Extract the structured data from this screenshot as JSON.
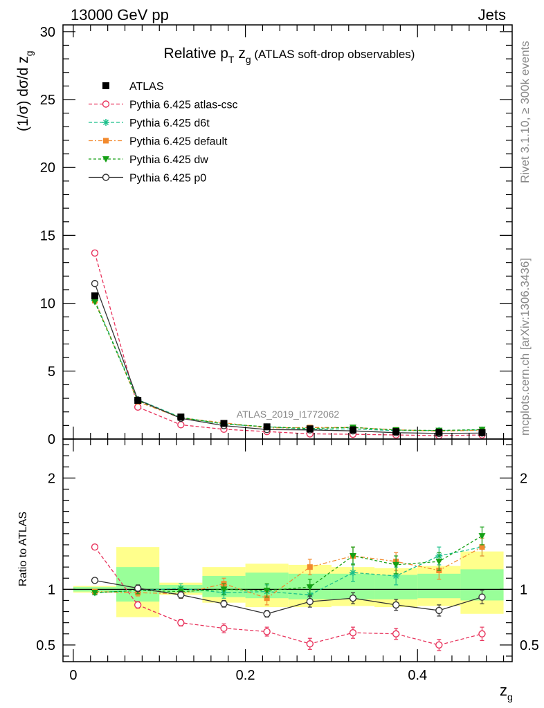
{
  "header": {
    "left": "13000 GeV pp",
    "right": "Jets"
  },
  "side_labels": {
    "rivet": "Rivet 3.1.10, ≥ 300k events",
    "mcplots": "mcplots.cern.ch [arXiv:1306.3436]"
  },
  "colors": {
    "data": "#000000",
    "atlas_csc": "#e8335c",
    "d6t": "#1bbf8a",
    "default": "#f28a2e",
    "dw": "#15a015",
    "p0": "#333333",
    "band_outer": "#ffff8c",
    "band_inner": "#99ff99"
  },
  "chart_data": [
    {
      "type": "line",
      "title": "Relative p_T z_g (ATLAS soft-drop observables)",
      "title_parts": {
        "main": "Relative p",
        "sub1": "T",
        "mid": " z",
        "sub2": "g",
        "rest": " (ATLAS soft-drop observables)"
      },
      "ylabel": "(1/σ) dσ/d z_g",
      "ylabel_parts": {
        "main": "(1/σ) dσ/d z",
        "sub": "g"
      },
      "watermark": "ATLAS_2019_I1772062",
      "xlim": [
        -0.012,
        0.51
      ],
      "ylim": [
        0,
        30.5
      ],
      "yticks": [
        0,
        5,
        10,
        15,
        20,
        25,
        30
      ],
      "ytick_labels": [
        "0",
        "5",
        "10",
        "15",
        "20",
        "25",
        "30"
      ],
      "legend_position": "top-left",
      "x": [
        0.025,
        0.075,
        0.125,
        0.175,
        0.225,
        0.275,
        0.325,
        0.375,
        0.425,
        0.475
      ],
      "bin_edges": [
        0.0,
        0.05,
        0.1,
        0.15,
        0.2,
        0.25,
        0.3,
        0.35,
        0.4,
        0.45,
        0.5
      ],
      "series": [
        {
          "name": "ATLAS",
          "key": "data",
          "values": [
            10.55,
            2.85,
            1.62,
            1.15,
            0.9,
            0.75,
            0.68,
            0.55,
            0.5,
            0.48
          ]
        },
        {
          "name": "Pythia 6.425 atlas-csc",
          "key": "atlas_csc",
          "values": [
            13.7,
            2.35,
            1.05,
            0.72,
            0.55,
            0.38,
            0.35,
            0.3,
            0.25,
            0.3
          ]
        },
        {
          "name": "Pythia 6.425 d6t",
          "key": "d6t",
          "values": [
            10.2,
            2.9,
            1.6,
            1.1,
            0.9,
            0.72,
            0.75,
            0.62,
            0.63,
            0.66
          ]
        },
        {
          "name": "Pythia 6.425 default",
          "key": "default",
          "values": [
            10.2,
            2.75,
            1.55,
            1.2,
            0.82,
            0.85,
            0.85,
            0.68,
            0.58,
            0.65
          ]
        },
        {
          "name": "Pythia 6.425 dw",
          "key": "dw",
          "values": [
            10.1,
            2.82,
            1.58,
            1.12,
            0.9,
            0.78,
            0.86,
            0.66,
            0.63,
            0.7
          ]
        },
        {
          "name": "Pythia 6.425 p0",
          "key": "p0",
          "values": [
            11.45,
            2.88,
            1.53,
            0.99,
            0.7,
            0.67,
            0.6,
            0.47,
            0.41,
            0.44
          ]
        }
      ]
    },
    {
      "type": "line",
      "ylabel": "Ratio to ATLAS",
      "xlabel": "z_g",
      "xlabel_parts": {
        "main": "z",
        "sub": "g"
      },
      "xlim": [
        -0.012,
        0.51
      ],
      "ylim": [
        0.35,
        2.35
      ],
      "xticks": [
        0,
        0.2,
        0.4
      ],
      "xtick_labels": [
        "0",
        "0.2",
        "0.4"
      ],
      "yticks": [
        0.5,
        1,
        2
      ],
      "ytick_labels": [
        "0.5",
        "1",
        "2"
      ],
      "x": [
        0.025,
        0.075,
        0.125,
        0.175,
        0.225,
        0.275,
        0.325,
        0.375,
        0.425,
        0.475
      ],
      "bin_edges": [
        0.0,
        0.05,
        0.1,
        0.15,
        0.2,
        0.25,
        0.3,
        0.35,
        0.4,
        0.45,
        0.5
      ],
      "band_outer": [
        [
          0.97,
          1.03
        ],
        [
          0.75,
          1.38
        ],
        [
          0.95,
          1.06
        ],
        [
          0.88,
          1.2
        ],
        [
          0.84,
          1.23
        ],
        [
          0.84,
          1.22
        ],
        [
          0.85,
          1.2
        ],
        [
          0.84,
          1.19
        ],
        [
          0.85,
          1.21
        ],
        [
          0.78,
          1.34
        ]
      ],
      "band_inner": [
        [
          0.98,
          1.02
        ],
        [
          0.89,
          1.2
        ],
        [
          0.97,
          1.04
        ],
        [
          0.93,
          1.12
        ],
        [
          0.92,
          1.15
        ],
        [
          0.91,
          1.14
        ],
        [
          0.91,
          1.14
        ],
        [
          0.91,
          1.13
        ],
        [
          0.92,
          1.14
        ],
        [
          0.9,
          1.18
        ]
      ],
      "series": [
        {
          "name": "Pythia 6.425 atlas-csc",
          "key": "atlas_csc",
          "values": [
            1.38,
            0.86,
            0.7,
            0.65,
            0.62,
            0.51,
            0.61,
            0.6,
            0.5,
            0.6
          ],
          "errors": [
            0.02,
            0.03,
            0.03,
            0.04,
            0.04,
            0.05,
            0.05,
            0.05,
            0.05,
            0.06
          ]
        },
        {
          "name": "Pythia 6.425 d6t",
          "key": "d6t",
          "values": [
            0.97,
            0.99,
            1.01,
            0.97,
            0.98,
            0.95,
            1.15,
            1.12,
            1.3,
            1.38
          ],
          "errors": [
            0.02,
            0.03,
            0.04,
            0.05,
            0.06,
            0.07,
            0.08,
            0.08,
            0.08,
            0.08
          ]
        },
        {
          "name": "Pythia 6.425 default",
          "key": "default",
          "values": [
            0.98,
            0.97,
            0.96,
            1.05,
            0.92,
            1.2,
            1.3,
            1.25,
            1.17,
            1.38
          ],
          "errors": [
            0.02,
            0.03,
            0.04,
            0.05,
            0.06,
            0.07,
            0.08,
            0.08,
            0.08,
            0.08
          ]
        },
        {
          "name": "Pythia 6.425 dw",
          "key": "dw",
          "values": [
            0.97,
            0.99,
            0.98,
            1.0,
            0.99,
            1.02,
            1.3,
            1.22,
            1.25,
            1.48
          ],
          "errors": [
            0.02,
            0.03,
            0.04,
            0.05,
            0.06,
            0.07,
            0.08,
            0.08,
            0.08,
            0.08
          ]
        },
        {
          "name": "Pythia 6.425 p0",
          "key": "p0",
          "values": [
            1.08,
            1.01,
            0.95,
            0.87,
            0.78,
            0.89,
            0.92,
            0.86,
            0.81,
            0.93
          ],
          "errors": [
            0.02,
            0.03,
            0.03,
            0.03,
            0.03,
            0.05,
            0.05,
            0.05,
            0.05,
            0.06
          ]
        }
      ]
    }
  ]
}
